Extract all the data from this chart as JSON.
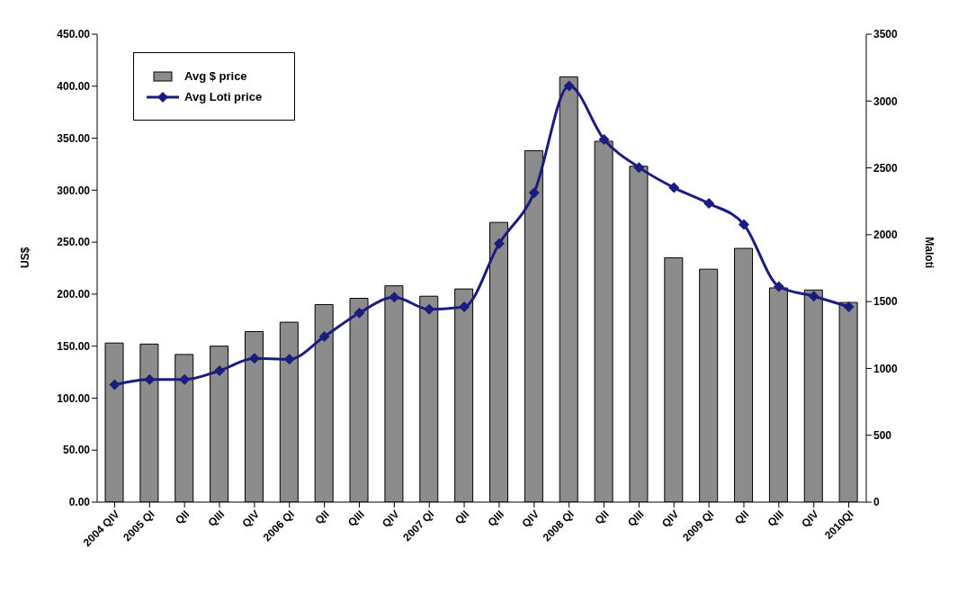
{
  "chart_data": {
    "type": "bar",
    "ylabel": "US$",
    "y2label": "Maloti",
    "categories": [
      "2004 QIV",
      "2005 QI",
      "QII",
      "QIII",
      "QIV",
      "2006 QI",
      "QII",
      "QIII",
      "QIV",
      "2007 QI",
      "QII",
      "QIII",
      "QIV",
      "2008 QI",
      "QII",
      "QIII",
      "QIV",
      "2009 QI",
      "QII",
      "QIII",
      "QIV",
      "2010QI"
    ],
    "series": [
      {
        "name": "Avg $ price",
        "color": "#8c8c8c",
        "values": [
          153,
          152,
          142,
          150,
          164,
          173,
          190,
          196,
          208,
          198,
          205,
          269,
          338,
          409,
          347,
          323,
          235,
          224,
          244,
          206,
          204,
          192
        ]
      },
      {
        "name": "Avg Loti price",
        "type": "line",
        "axis": "y2",
        "color": "#1c1c80",
        "marker": "diamond",
        "values": [
          878,
          917,
          917,
          983,
          1075,
          1068,
          1238,
          1415,
          1533,
          1442,
          1461,
          1933,
          2313,
          3113,
          2713,
          2503,
          2352,
          2234,
          2077,
          1612,
          1540,
          1461
        ]
      }
    ],
    "ylim": [
      0,
      450
    ],
    "yticks": [
      {
        "value": 0,
        "label": "0.00"
      },
      {
        "value": 50,
        "label": "50.00"
      },
      {
        "value": 100,
        "label": "100.00"
      },
      {
        "value": 150,
        "label": "150.00"
      },
      {
        "value": 200,
        "label": "200.00"
      },
      {
        "value": 250,
        "label": "250.00"
      },
      {
        "value": 300,
        "label": "300.00"
      },
      {
        "value": 350,
        "label": "350.00"
      },
      {
        "value": 400,
        "label": "400.00"
      },
      {
        "value": 450,
        "label": "450.00"
      }
    ],
    "y2lim": [
      0,
      3500
    ],
    "y2ticks": [
      0,
      500,
      1000,
      1500,
      2000,
      2500,
      3000,
      3500
    ],
    "grid": false,
    "legend": "top left"
  }
}
